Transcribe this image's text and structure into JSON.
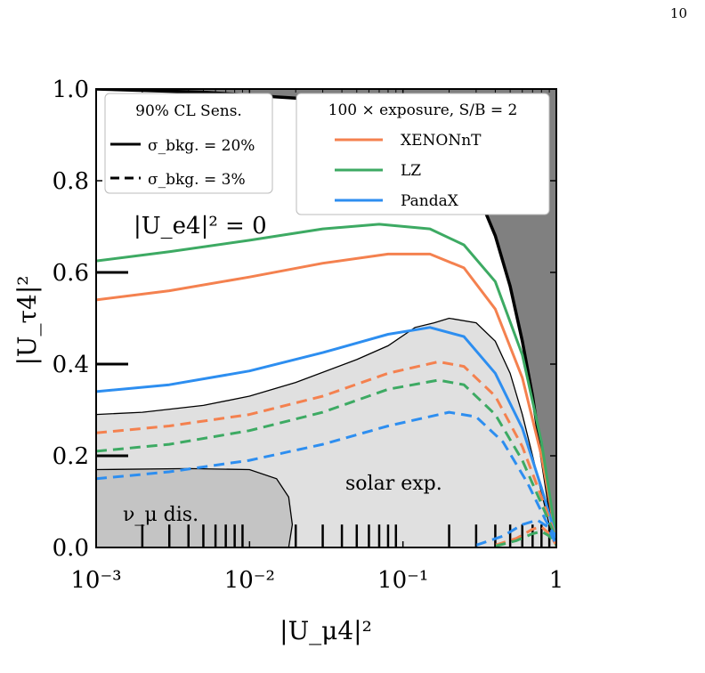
{
  "page_number": "10",
  "chart_data": {
    "type": "line",
    "xscale": "log",
    "xlim": [
      0.001,
      1
    ],
    "ylim": [
      0,
      1
    ],
    "xlabel": "|U_μ4|²",
    "ylabel": "|U_τ4|²",
    "x_ticks": [
      {
        "value": 0.001,
        "label": "10⁻³"
      },
      {
        "value": 0.01,
        "label": "10⁻²"
      },
      {
        "value": 0.1,
        "label": "10⁻¹"
      },
      {
        "value": 1,
        "label": "1"
      }
    ],
    "y_ticks": [
      {
        "value": 0.0,
        "label": "0.0"
      },
      {
        "value": 0.2,
        "label": "0.2"
      },
      {
        "value": 0.4,
        "label": "0.4"
      },
      {
        "value": 0.6,
        "label": "0.6"
      },
      {
        "value": 0.8,
        "label": "0.8"
      },
      {
        "value": 1.0,
        "label": "1.0"
      }
    ],
    "colors": {
      "XENONnT": "#f4814f",
      "LZ": "#3daa63",
      "PandaX": "#2d8ef0",
      "solar": "#e0e0e0",
      "numu": "#c4c4c4",
      "unitarity": "#808080"
    },
    "annotations": {
      "ue4": "|U_e4|² = 0",
      "solar": "solar exp.",
      "numu": "ν_μ dis."
    },
    "legend_left": {
      "title": "90% CL Sens.",
      "entries": [
        {
          "label": "σ_bkg. = 20%",
          "style": "solid"
        },
        {
          "label": "σ_bkg. = 3%",
          "style": "dashed"
        }
      ]
    },
    "legend_right": {
      "title": "100 × exposure, S/B = 2",
      "entries": [
        "XENONnT",
        "LZ",
        "PandaX"
      ]
    },
    "regions": {
      "unitarity_boundary": [
        [
          0.001,
          1.0
        ],
        [
          0.005,
          0.993
        ],
        [
          0.02,
          0.98
        ],
        [
          0.05,
          0.96
        ],
        [
          0.1,
          0.92
        ],
        [
          0.2,
          0.86
        ],
        [
          0.3,
          0.78
        ],
        [
          0.4,
          0.68
        ],
        [
          0.5,
          0.57
        ],
        [
          0.6,
          0.45
        ],
        [
          0.7,
          0.33
        ],
        [
          0.8,
          0.2
        ],
        [
          0.9,
          0.09
        ],
        [
          1.0,
          0.0
        ]
      ],
      "solar_top": [
        [
          0.001,
          0.29
        ],
        [
          0.002,
          0.295
        ],
        [
          0.005,
          0.31
        ],
        [
          0.01,
          0.33
        ],
        [
          0.02,
          0.36
        ],
        [
          0.05,
          0.41
        ],
        [
          0.08,
          0.44
        ],
        [
          0.12,
          0.48
        ],
        [
          0.16,
          0.49
        ],
        [
          0.2,
          0.5
        ],
        [
          0.3,
          0.49
        ],
        [
          0.4,
          0.45
        ],
        [
          0.5,
          0.38
        ],
        [
          0.6,
          0.29
        ],
        [
          0.7,
          0.2
        ],
        [
          0.8,
          0.12
        ],
        [
          0.9,
          0.05
        ],
        [
          1.0,
          0.0
        ]
      ],
      "numu_boundary": [
        [
          0.001,
          0.17
        ],
        [
          0.004,
          0.172
        ],
        [
          0.01,
          0.17
        ],
        [
          0.015,
          0.15
        ],
        [
          0.018,
          0.11
        ],
        [
          0.019,
          0.05
        ],
        [
          0.018,
          0.0
        ]
      ]
    },
    "series": [
      {
        "name": "XENONnT",
        "style": "solid",
        "points": [
          [
            0.001,
            0.54
          ],
          [
            0.003,
            0.56
          ],
          [
            0.01,
            0.59
          ],
          [
            0.03,
            0.62
          ],
          [
            0.08,
            0.64
          ],
          [
            0.15,
            0.64
          ],
          [
            0.25,
            0.61
          ],
          [
            0.4,
            0.52
          ],
          [
            0.6,
            0.37
          ],
          [
            0.8,
            0.2
          ],
          [
            1.0,
            0.02
          ]
        ]
      },
      {
        "name": "LZ",
        "style": "solid",
        "points": [
          [
            0.001,
            0.625
          ],
          [
            0.003,
            0.645
          ],
          [
            0.01,
            0.67
          ],
          [
            0.03,
            0.695
          ],
          [
            0.07,
            0.705
          ],
          [
            0.15,
            0.695
          ],
          [
            0.25,
            0.66
          ],
          [
            0.4,
            0.58
          ],
          [
            0.6,
            0.42
          ],
          [
            0.8,
            0.23
          ],
          [
            1.0,
            0.02
          ]
        ]
      },
      {
        "name": "PandaX",
        "style": "solid",
        "points": [
          [
            0.001,
            0.34
          ],
          [
            0.003,
            0.355
          ],
          [
            0.01,
            0.385
          ],
          [
            0.03,
            0.425
          ],
          [
            0.08,
            0.465
          ],
          [
            0.15,
            0.48
          ],
          [
            0.25,
            0.46
          ],
          [
            0.4,
            0.38
          ],
          [
            0.6,
            0.26
          ],
          [
            0.8,
            0.13
          ],
          [
            1.0,
            0.02
          ]
        ]
      },
      {
        "name": "XENONnT",
        "style": "dashed",
        "points": [
          [
            0.001,
            0.25
          ],
          [
            0.003,
            0.265
          ],
          [
            0.01,
            0.29
          ],
          [
            0.03,
            0.33
          ],
          [
            0.08,
            0.38
          ],
          [
            0.17,
            0.405
          ],
          [
            0.25,
            0.395
          ],
          [
            0.4,
            0.33
          ],
          [
            0.6,
            0.22
          ],
          [
            0.8,
            0.11
          ],
          [
            1.0,
            0.02
          ]
        ]
      },
      {
        "name": "LZ",
        "style": "dashed",
        "points": [
          [
            0.001,
            0.21
          ],
          [
            0.003,
            0.225
          ],
          [
            0.01,
            0.255
          ],
          [
            0.03,
            0.295
          ],
          [
            0.08,
            0.345
          ],
          [
            0.17,
            0.365
          ],
          [
            0.25,
            0.355
          ],
          [
            0.4,
            0.29
          ],
          [
            0.6,
            0.19
          ],
          [
            0.8,
            0.095
          ],
          [
            1.0,
            0.02
          ]
        ]
      },
      {
        "name": "PandaX",
        "style": "dashed",
        "points": [
          [
            0.001,
            0.15
          ],
          [
            0.003,
            0.165
          ],
          [
            0.01,
            0.19
          ],
          [
            0.03,
            0.225
          ],
          [
            0.08,
            0.265
          ],
          [
            0.2,
            0.295
          ],
          [
            0.3,
            0.285
          ],
          [
            0.45,
            0.23
          ],
          [
            0.65,
            0.14
          ],
          [
            0.85,
            0.06
          ],
          [
            1.0,
            0.02
          ]
        ]
      },
      {
        "name": "XENONnT",
        "style": "dashed",
        "points": [
          [
            0.4,
            0.005
          ],
          [
            0.55,
            0.02
          ],
          [
            0.7,
            0.04
          ],
          [
            0.8,
            0.045
          ],
          [
            0.9,
            0.03
          ],
          [
            1.0,
            0.005
          ]
        ]
      },
      {
        "name": "LZ",
        "style": "dashed",
        "points": [
          [
            0.4,
            0.003
          ],
          [
            0.55,
            0.015
          ],
          [
            0.7,
            0.03
          ],
          [
            0.8,
            0.035
          ],
          [
            0.9,
            0.025
          ],
          [
            1.0,
            0.005
          ]
        ]
      },
      {
        "name": "PandaX",
        "style": "dashed",
        "points": [
          [
            0.3,
            0.005
          ],
          [
            0.45,
            0.025
          ],
          [
            0.6,
            0.05
          ],
          [
            0.75,
            0.06
          ],
          [
            0.88,
            0.045
          ],
          [
            1.0,
            0.005
          ]
        ]
      }
    ],
    "left_markers_y": [
      0.6,
      0.4,
      0.2
    ],
    "bottom_markers_x": [
      0.002,
      0.003,
      0.004,
      0.005,
      0.006,
      0.007,
      0.008,
      0.009,
      0.02,
      0.03,
      0.04,
      0.05,
      0.06,
      0.07,
      0.08,
      0.09,
      0.2,
      0.3,
      0.4,
      0.5,
      0.6,
      0.7,
      0.8,
      0.9
    ]
  }
}
